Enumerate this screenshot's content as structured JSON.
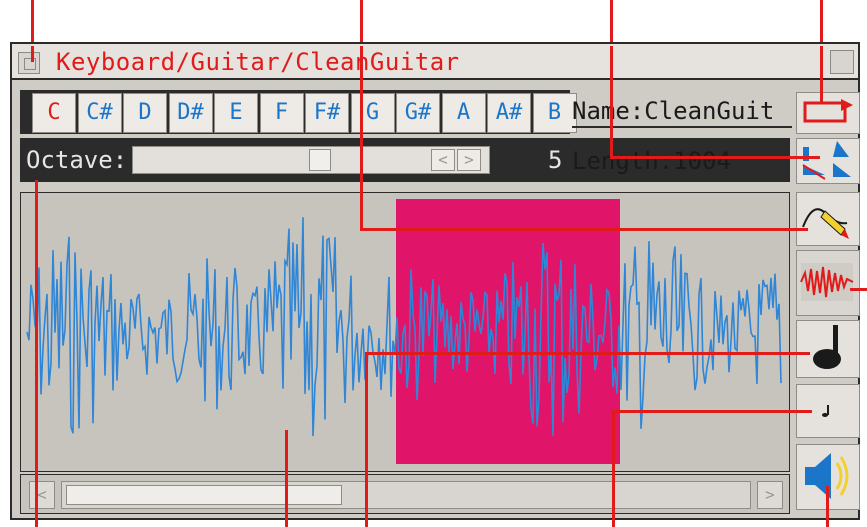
{
  "window": {
    "title": "Keyboard/Guitar/CleanGuitar"
  },
  "notes": [
    "C",
    "C#",
    "D",
    "D#",
    "E",
    "F",
    "F#",
    "G",
    "G#",
    "A",
    "A#",
    "B"
  ],
  "selected_note": "C",
  "fields": {
    "name_text": "Name:CleanGuit",
    "length_text": "Length:1004"
  },
  "octave": {
    "label": "Octave:",
    "value": "5"
  },
  "selection": {
    "color": "#e0156a"
  },
  "colors": {
    "accent": "#e11a1a",
    "waveform": "#2f86d6",
    "note_text": "#1b75c9"
  },
  "icons": {
    "loop": "loop-arrow-icon",
    "envelope": "envelope-shapes-icon",
    "draw": "pencil-draw-icon",
    "waveform_view": "waveform-icon",
    "note_large": "quarter-note-icon",
    "note_small": "small-note-icon",
    "speaker": "speaker-icon"
  }
}
